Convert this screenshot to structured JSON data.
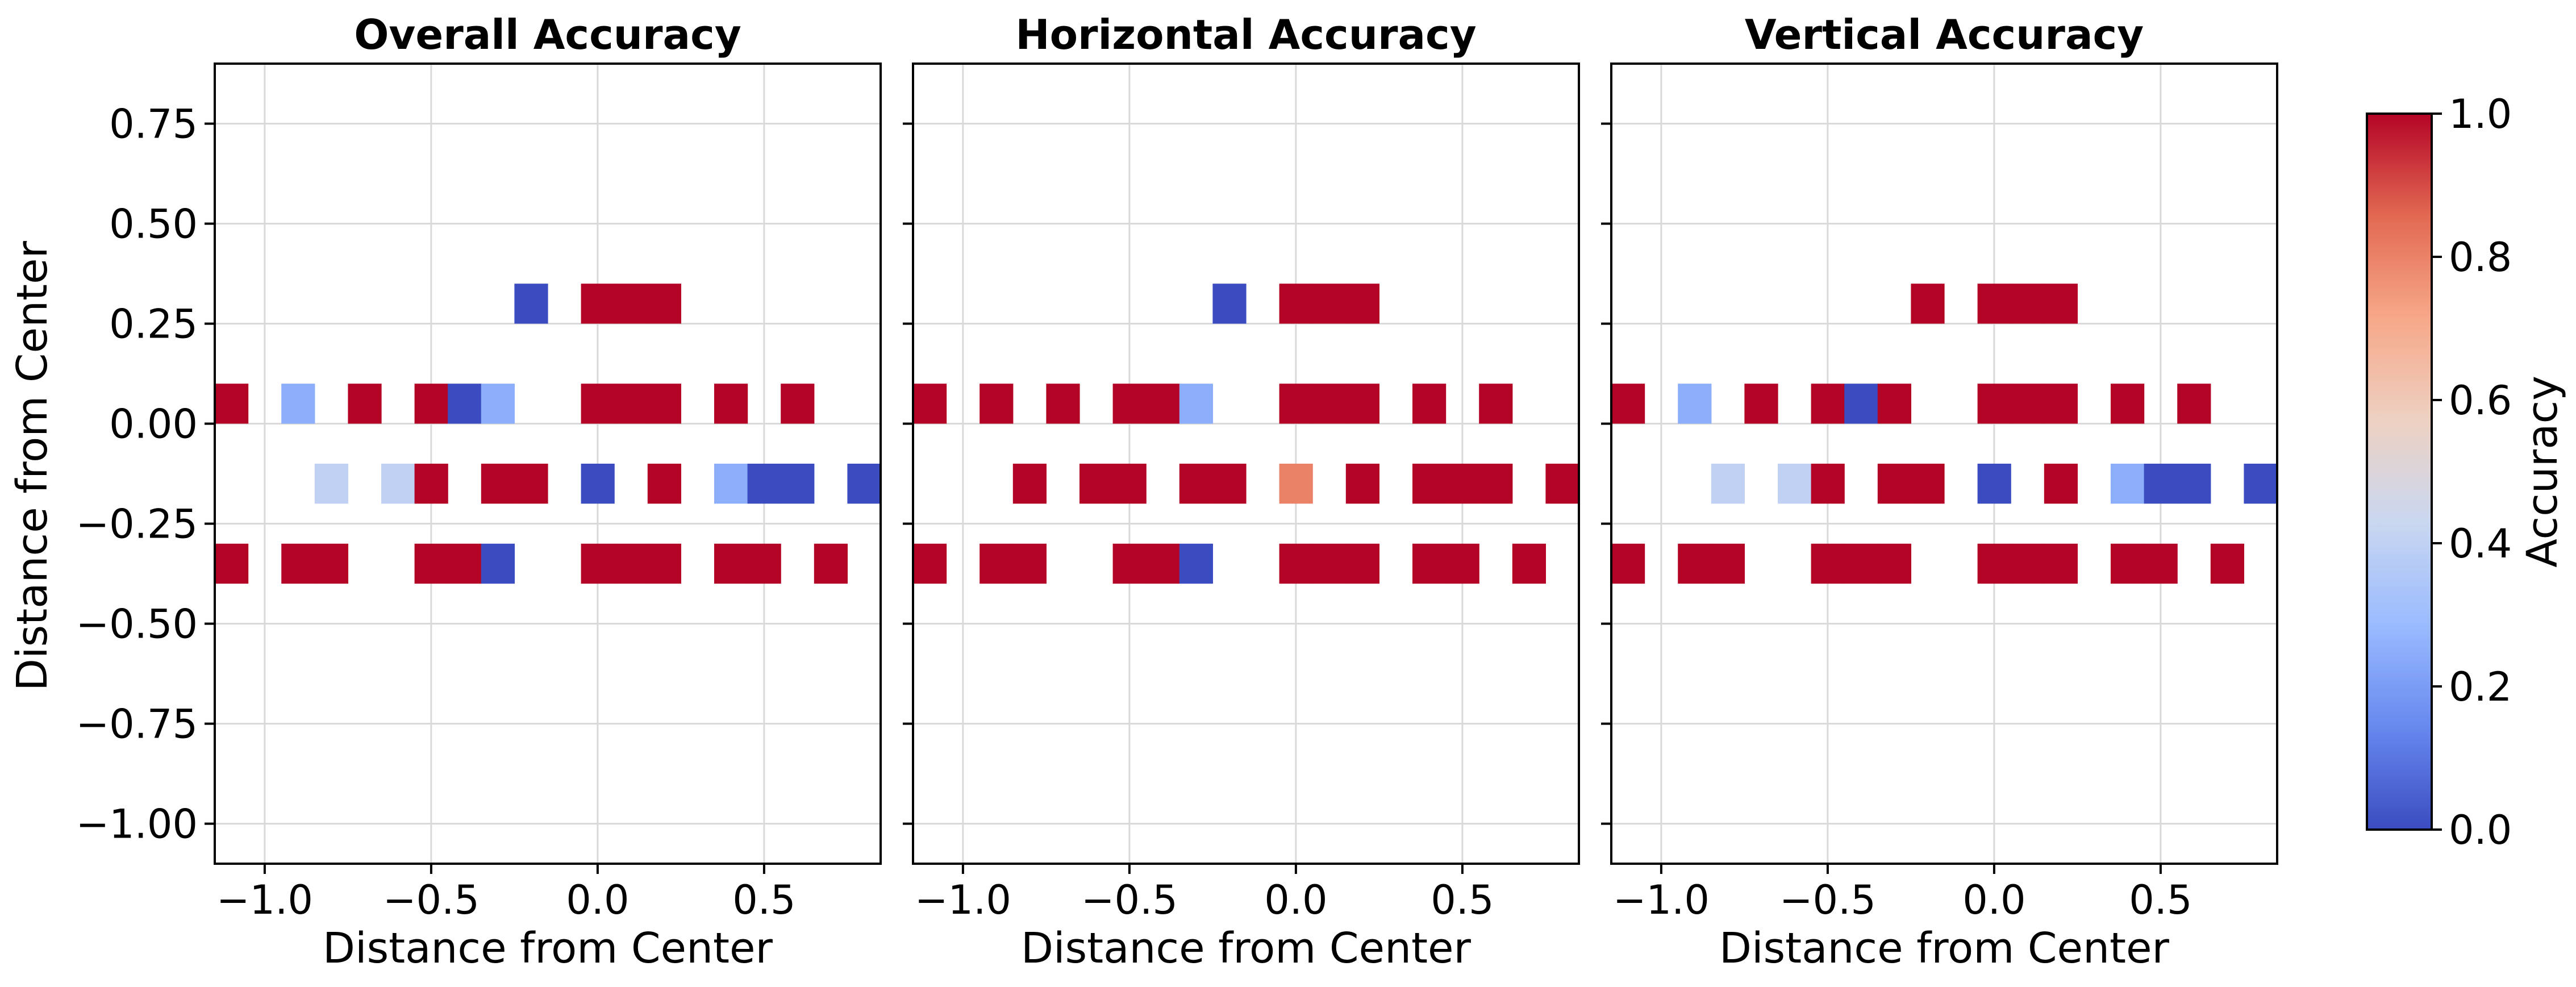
{
  "chart_data": [
    {
      "type": "heatmap",
      "title": "Overall Accuracy",
      "xlabel": "Distance from Center",
      "ylabel": "Distance from Center",
      "xlim": [
        -1.15,
        0.85
      ],
      "ylim": [
        -1.1,
        0.9
      ],
      "xticks": [
        -1.0,
        -0.5,
        0.0,
        0.5
      ],
      "xtick_labels": [
        "−1.0",
        "−0.5",
        "0.0",
        "0.5"
      ],
      "yticks": [
        0.75,
        0.5,
        0.25,
        0.0,
        -0.25,
        -0.5,
        -0.75,
        -1.0
      ],
      "ytick_labels": [
        "0.75",
        "0.50",
        "0.25",
        "0.00",
        "−0.25",
        "−0.50",
        "−0.75",
        "−1.00"
      ],
      "grid": true,
      "cell_width": 0.1,
      "cells": [
        {
          "x": -0.2,
          "y": 0.3,
          "v": 0.0
        },
        {
          "x": 0.0,
          "y": 0.3,
          "v": 1.0
        },
        {
          "x": 0.1,
          "y": 0.3,
          "v": 1.0
        },
        {
          "x": 0.2,
          "y": 0.3,
          "v": 1.0
        },
        {
          "x": -1.1,
          "y": 0.05,
          "v": 1.0
        },
        {
          "x": -0.9,
          "y": 0.05,
          "v": 0.25
        },
        {
          "x": -0.7,
          "y": 0.05,
          "v": 1.0
        },
        {
          "x": -0.5,
          "y": 0.05,
          "v": 1.0
        },
        {
          "x": -0.4,
          "y": 0.05,
          "v": 0.0
        },
        {
          "x": -0.3,
          "y": 0.05,
          "v": 0.25
        },
        {
          "x": 0.0,
          "y": 0.05,
          "v": 1.0
        },
        {
          "x": 0.1,
          "y": 0.05,
          "v": 1.0
        },
        {
          "x": 0.2,
          "y": 0.05,
          "v": 1.0
        },
        {
          "x": 0.4,
          "y": 0.05,
          "v": 1.0
        },
        {
          "x": 0.6,
          "y": 0.05,
          "v": 1.0
        },
        {
          "x": -0.8,
          "y": -0.15,
          "v": 0.4
        },
        {
          "x": -0.6,
          "y": -0.15,
          "v": 0.4
        },
        {
          "x": -0.5,
          "y": -0.15,
          "v": 1.0
        },
        {
          "x": -0.3,
          "y": -0.15,
          "v": 1.0
        },
        {
          "x": -0.2,
          "y": -0.15,
          "v": 1.0
        },
        {
          "x": 0.0,
          "y": -0.15,
          "v": 0.0
        },
        {
          "x": 0.2,
          "y": -0.15,
          "v": 1.0
        },
        {
          "x": 0.4,
          "y": -0.15,
          "v": 0.25
        },
        {
          "x": 0.5,
          "y": -0.15,
          "v": 0.0
        },
        {
          "x": 0.6,
          "y": -0.15,
          "v": 0.0
        },
        {
          "x": 0.8,
          "y": -0.15,
          "v": 0.0
        },
        {
          "x": -1.1,
          "y": -0.35,
          "v": 1.0
        },
        {
          "x": -0.9,
          "y": -0.35,
          "v": 1.0
        },
        {
          "x": -0.8,
          "y": -0.35,
          "v": 1.0
        },
        {
          "x": -0.5,
          "y": -0.35,
          "v": 1.0
        },
        {
          "x": -0.4,
          "y": -0.35,
          "v": 1.0
        },
        {
          "x": -0.3,
          "y": -0.35,
          "v": 0.0
        },
        {
          "x": 0.0,
          "y": -0.35,
          "v": 1.0
        },
        {
          "x": 0.1,
          "y": -0.35,
          "v": 1.0
        },
        {
          "x": 0.2,
          "y": -0.35,
          "v": 1.0
        },
        {
          "x": 0.4,
          "y": -0.35,
          "v": 1.0
        },
        {
          "x": 0.5,
          "y": -0.35,
          "v": 1.0
        },
        {
          "x": 0.7,
          "y": -0.35,
          "v": 1.0
        }
      ]
    },
    {
      "type": "heatmap",
      "title": "Horizontal Accuracy",
      "xlabel": "Distance from Center",
      "ylabel": "",
      "xlim": [
        -1.15,
        0.85
      ],
      "ylim": [
        -1.1,
        0.9
      ],
      "xticks": [
        -1.0,
        -0.5,
        0.0,
        0.5
      ],
      "xtick_labels": [
        "−1.0",
        "−0.5",
        "0.0",
        "0.5"
      ],
      "yticks": [
        0.75,
        0.5,
        0.25,
        0.0,
        -0.25,
        -0.5,
        -0.75,
        -1.0
      ],
      "ytick_labels": [],
      "grid": true,
      "cell_width": 0.1,
      "cells": [
        {
          "x": -0.2,
          "y": 0.3,
          "v": 0.0
        },
        {
          "x": 0.0,
          "y": 0.3,
          "v": 1.0
        },
        {
          "x": 0.1,
          "y": 0.3,
          "v": 1.0
        },
        {
          "x": 0.2,
          "y": 0.3,
          "v": 1.0
        },
        {
          "x": -1.1,
          "y": 0.05,
          "v": 1.0
        },
        {
          "x": -0.9,
          "y": 0.05,
          "v": 1.0
        },
        {
          "x": -0.7,
          "y": 0.05,
          "v": 1.0
        },
        {
          "x": -0.5,
          "y": 0.05,
          "v": 1.0
        },
        {
          "x": -0.4,
          "y": 0.05,
          "v": 1.0
        },
        {
          "x": -0.3,
          "y": 0.05,
          "v": 0.25
        },
        {
          "x": 0.0,
          "y": 0.05,
          "v": 1.0
        },
        {
          "x": 0.1,
          "y": 0.05,
          "v": 1.0
        },
        {
          "x": 0.2,
          "y": 0.05,
          "v": 1.0
        },
        {
          "x": 0.4,
          "y": 0.05,
          "v": 1.0
        },
        {
          "x": 0.6,
          "y": 0.05,
          "v": 1.0
        },
        {
          "x": -0.8,
          "y": -0.15,
          "v": 1.0
        },
        {
          "x": -0.6,
          "y": -0.15,
          "v": 1.0
        },
        {
          "x": -0.5,
          "y": -0.15,
          "v": 1.0
        },
        {
          "x": -0.3,
          "y": -0.15,
          "v": 1.0
        },
        {
          "x": -0.2,
          "y": -0.15,
          "v": 1.0
        },
        {
          "x": 0.0,
          "y": -0.15,
          "v": 0.8
        },
        {
          "x": 0.2,
          "y": -0.15,
          "v": 1.0
        },
        {
          "x": 0.4,
          "y": -0.15,
          "v": 1.0
        },
        {
          "x": 0.5,
          "y": -0.15,
          "v": 1.0
        },
        {
          "x": 0.6,
          "y": -0.15,
          "v": 1.0
        },
        {
          "x": 0.8,
          "y": -0.15,
          "v": 1.0
        },
        {
          "x": -1.1,
          "y": -0.35,
          "v": 1.0
        },
        {
          "x": -0.9,
          "y": -0.35,
          "v": 1.0
        },
        {
          "x": -0.8,
          "y": -0.35,
          "v": 1.0
        },
        {
          "x": -0.5,
          "y": -0.35,
          "v": 1.0
        },
        {
          "x": -0.4,
          "y": -0.35,
          "v": 1.0
        },
        {
          "x": -0.3,
          "y": -0.35,
          "v": 0.0
        },
        {
          "x": 0.0,
          "y": -0.35,
          "v": 1.0
        },
        {
          "x": 0.1,
          "y": -0.35,
          "v": 1.0
        },
        {
          "x": 0.2,
          "y": -0.35,
          "v": 1.0
        },
        {
          "x": 0.4,
          "y": -0.35,
          "v": 1.0
        },
        {
          "x": 0.5,
          "y": -0.35,
          "v": 1.0
        },
        {
          "x": 0.7,
          "y": -0.35,
          "v": 1.0
        }
      ]
    },
    {
      "type": "heatmap",
      "title": "Vertical Accuracy",
      "xlabel": "Distance from Center",
      "ylabel": "",
      "xlim": [
        -1.15,
        0.85
      ],
      "ylim": [
        -1.1,
        0.9
      ],
      "xticks": [
        -1.0,
        -0.5,
        0.0,
        0.5
      ],
      "xtick_labels": [
        "−1.0",
        "−0.5",
        "0.0",
        "0.5"
      ],
      "yticks": [
        0.75,
        0.5,
        0.25,
        0.0,
        -0.25,
        -0.5,
        -0.75,
        -1.0
      ],
      "ytick_labels": [],
      "grid": true,
      "cell_width": 0.1,
      "cells": [
        {
          "x": -0.2,
          "y": 0.3,
          "v": 1.0
        },
        {
          "x": 0.0,
          "y": 0.3,
          "v": 1.0
        },
        {
          "x": 0.1,
          "y": 0.3,
          "v": 1.0
        },
        {
          "x": 0.2,
          "y": 0.3,
          "v": 1.0
        },
        {
          "x": -1.1,
          "y": 0.05,
          "v": 1.0
        },
        {
          "x": -0.9,
          "y": 0.05,
          "v": 0.25
        },
        {
          "x": -0.7,
          "y": 0.05,
          "v": 1.0
        },
        {
          "x": -0.5,
          "y": 0.05,
          "v": 1.0
        },
        {
          "x": -0.4,
          "y": 0.05,
          "v": 0.0
        },
        {
          "x": -0.3,
          "y": 0.05,
          "v": 1.0
        },
        {
          "x": 0.0,
          "y": 0.05,
          "v": 1.0
        },
        {
          "x": 0.1,
          "y": 0.05,
          "v": 1.0
        },
        {
          "x": 0.2,
          "y": 0.05,
          "v": 1.0
        },
        {
          "x": 0.4,
          "y": 0.05,
          "v": 1.0
        },
        {
          "x": 0.6,
          "y": 0.05,
          "v": 1.0
        },
        {
          "x": -0.8,
          "y": -0.15,
          "v": 0.4
        },
        {
          "x": -0.6,
          "y": -0.15,
          "v": 0.4
        },
        {
          "x": -0.5,
          "y": -0.15,
          "v": 1.0
        },
        {
          "x": -0.3,
          "y": -0.15,
          "v": 1.0
        },
        {
          "x": -0.2,
          "y": -0.15,
          "v": 1.0
        },
        {
          "x": 0.0,
          "y": -0.15,
          "v": 0.0
        },
        {
          "x": 0.2,
          "y": -0.15,
          "v": 1.0
        },
        {
          "x": 0.4,
          "y": -0.15,
          "v": 0.25
        },
        {
          "x": 0.5,
          "y": -0.15,
          "v": 0.0
        },
        {
          "x": 0.6,
          "y": -0.15,
          "v": 0.0
        },
        {
          "x": 0.8,
          "y": -0.15,
          "v": 0.0
        },
        {
          "x": -1.1,
          "y": -0.35,
          "v": 1.0
        },
        {
          "x": -0.9,
          "y": -0.35,
          "v": 1.0
        },
        {
          "x": -0.8,
          "y": -0.35,
          "v": 1.0
        },
        {
          "x": -0.5,
          "y": -0.35,
          "v": 1.0
        },
        {
          "x": -0.4,
          "y": -0.35,
          "v": 1.0
        },
        {
          "x": -0.3,
          "y": -0.35,
          "v": 1.0
        },
        {
          "x": 0.0,
          "y": -0.35,
          "v": 1.0
        },
        {
          "x": 0.1,
          "y": -0.35,
          "v": 1.0
        },
        {
          "x": 0.2,
          "y": -0.35,
          "v": 1.0
        },
        {
          "x": 0.4,
          "y": -0.35,
          "v": 1.0
        },
        {
          "x": 0.5,
          "y": -0.35,
          "v": 1.0
        },
        {
          "x": 0.7,
          "y": -0.35,
          "v": 1.0
        }
      ]
    }
  ],
  "colorbar": {
    "label": "Accuracy",
    "range": [
      0,
      1
    ],
    "ticks": [
      0.0,
      0.2,
      0.4,
      0.6,
      0.8,
      1.0
    ],
    "tick_labels": [
      "0.0",
      "0.2",
      "0.4",
      "0.6",
      "0.8",
      "1.0"
    ],
    "colormap": "coolwarm",
    "stops": [
      "#3b4cc0",
      "#6788ee",
      "#9abbff",
      "#c9d7f0",
      "#edd1c2",
      "#f7a889",
      "#e26952",
      "#b40426"
    ]
  }
}
